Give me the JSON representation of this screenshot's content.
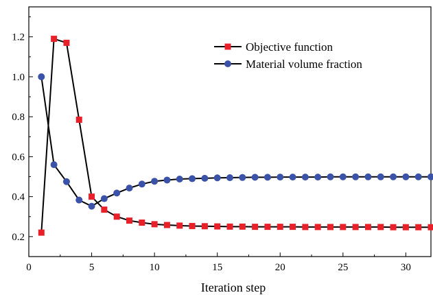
{
  "chart_data": {
    "type": "line",
    "title": "",
    "xlabel": "Iteration step",
    "ylabel": "",
    "xlim": [
      0,
      32
    ],
    "ylim": [
      0.1,
      1.35
    ],
    "xticks": [
      0,
      5,
      10,
      15,
      20,
      25,
      30
    ],
    "yticks": [
      0.2,
      0.4,
      0.6,
      0.8,
      1.0,
      1.2
    ],
    "xtick_labels": [
      "0",
      "5",
      "10",
      "15",
      "20",
      "25",
      "30"
    ],
    "ytick_labels": [
      "0.2",
      "0.4",
      "0.6",
      "0.8",
      "1.0",
      "1.2"
    ],
    "grid": false,
    "legend_position": "top-right",
    "x": [
      1,
      2,
      3,
      4,
      5,
      6,
      7,
      8,
      9,
      10,
      11,
      12,
      13,
      14,
      15,
      16,
      17,
      18,
      19,
      20,
      21,
      22,
      23,
      24,
      25,
      26,
      27,
      28,
      29,
      30,
      31,
      32
    ],
    "series": [
      {
        "name": "Objective function",
        "color": "#e8202a",
        "marker": "square",
        "values": [
          0.22,
          1.19,
          1.17,
          0.785,
          0.4,
          0.335,
          0.3,
          0.28,
          0.27,
          0.262,
          0.258,
          0.255,
          0.253,
          0.252,
          0.251,
          0.25,
          0.25,
          0.249,
          0.249,
          0.249,
          0.249,
          0.248,
          0.248,
          0.248,
          0.248,
          0.248,
          0.248,
          0.248,
          0.247,
          0.247,
          0.247,
          0.247
        ]
      },
      {
        "name": "Material volume fraction",
        "color": "#3a52a8",
        "marker": "circle",
        "values": [
          1.0,
          0.56,
          0.475,
          0.383,
          0.352,
          0.39,
          0.418,
          0.443,
          0.463,
          0.477,
          0.483,
          0.488,
          0.49,
          0.492,
          0.494,
          0.495,
          0.496,
          0.497,
          0.497,
          0.498,
          0.498,
          0.498,
          0.498,
          0.499,
          0.499,
          0.499,
          0.499,
          0.499,
          0.499,
          0.499,
          0.499,
          0.499
        ]
      }
    ]
  }
}
